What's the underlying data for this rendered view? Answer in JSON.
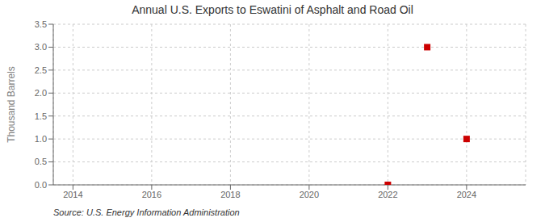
{
  "chart_data": {
    "type": "scatter",
    "title": "Annual U.S. Exports to Eswatini of Asphalt and Road Oil",
    "ylabel": "Thousand Barrels",
    "annotations": [
      "Source: U.S. Energy Information Administration"
    ],
    "x": [
      2022,
      2023,
      2024
    ],
    "values": [
      0.0,
      3.0,
      1.0
    ],
    "color": "#cc0000",
    "marker": "square",
    "xlim": [
      2013.5,
      2025.5
    ],
    "xticks": [
      2014,
      2016,
      2018,
      2020,
      2022,
      2024
    ],
    "ylim": [
      0.0,
      3.5
    ],
    "yticks": [
      {
        "value": 0.0,
        "label": "0.0"
      },
      0.5,
      {
        "value": 1.0,
        "label": "1.0"
      },
      1.5,
      {
        "value": 2.0,
        "label": "2.0"
      },
      2.5,
      {
        "value": 3.0,
        "label": "3.0"
      },
      3.5
    ],
    "grid": true
  }
}
